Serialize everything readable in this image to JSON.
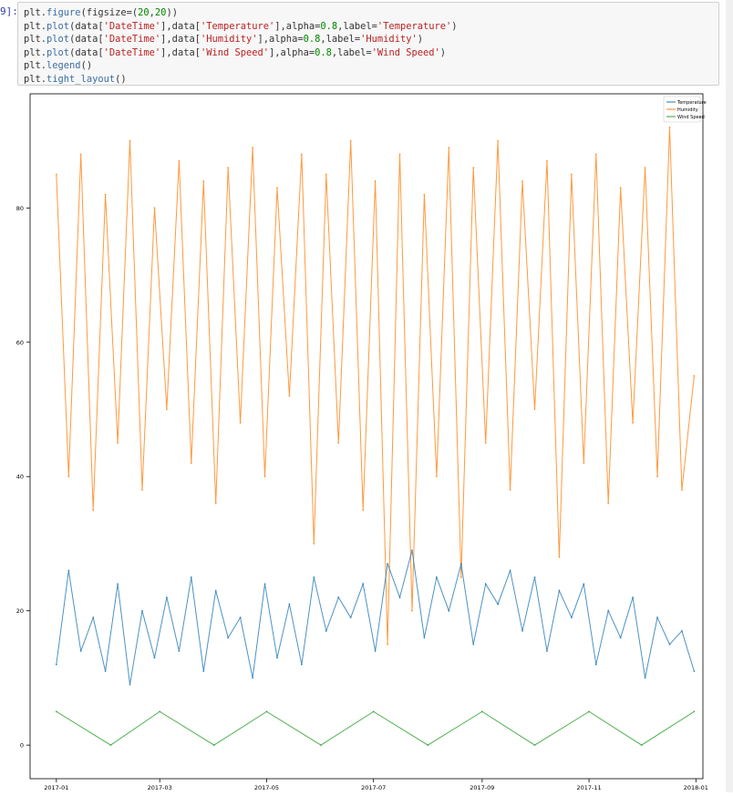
{
  "cell": {
    "prompt": "9]:",
    "lines": [
      [
        {
          "t": "plt.",
          "c": "plt"
        },
        {
          "t": "figure",
          "c": "kw"
        },
        {
          "t": "(figsize=(",
          "c": "plt"
        },
        {
          "t": "20",
          "c": "num"
        },
        {
          "t": ",",
          "c": "plt"
        },
        {
          "t": "20",
          "c": "num"
        },
        {
          "t": "))",
          "c": "plt"
        }
      ],
      [
        {
          "t": "plt.",
          "c": "plt"
        },
        {
          "t": "plot",
          "c": "kw"
        },
        {
          "t": "(data[",
          "c": "plt"
        },
        {
          "t": "'DateTime'",
          "c": "str"
        },
        {
          "t": "],data[",
          "c": "plt"
        },
        {
          "t": "'Temperature'",
          "c": "str"
        },
        {
          "t": "],alpha=",
          "c": "plt"
        },
        {
          "t": "0.8",
          "c": "num"
        },
        {
          "t": ",label=",
          "c": "plt"
        },
        {
          "t": "'Temperature'",
          "c": "str"
        },
        {
          "t": ")",
          "c": "plt"
        }
      ],
      [
        {
          "t": "plt.",
          "c": "plt"
        },
        {
          "t": "plot",
          "c": "kw"
        },
        {
          "t": "(data[",
          "c": "plt"
        },
        {
          "t": "'DateTime'",
          "c": "str"
        },
        {
          "t": "],data[",
          "c": "plt"
        },
        {
          "t": "'Humidity'",
          "c": "str"
        },
        {
          "t": "],alpha=",
          "c": "plt"
        },
        {
          "t": "0.8",
          "c": "num"
        },
        {
          "t": ",label=",
          "c": "plt"
        },
        {
          "t": "'Humidity'",
          "c": "str"
        },
        {
          "t": ")",
          "c": "plt"
        }
      ],
      [
        {
          "t": "plt.",
          "c": "plt"
        },
        {
          "t": "plot",
          "c": "kw"
        },
        {
          "t": "(data[",
          "c": "plt"
        },
        {
          "t": "'DateTime'",
          "c": "str"
        },
        {
          "t": "],data[",
          "c": "plt"
        },
        {
          "t": "'Wind Speed'",
          "c": "str"
        },
        {
          "t": "],alpha=",
          "c": "plt"
        },
        {
          "t": "0.8",
          "c": "num"
        },
        {
          "t": ",label=",
          "c": "plt"
        },
        {
          "t": "'Wind Speed'",
          "c": "str"
        },
        {
          "t": ")",
          "c": "plt"
        }
      ],
      [
        {
          "t": "plt.",
          "c": "plt"
        },
        {
          "t": "legend",
          "c": "kw"
        },
        {
          "t": "()",
          "c": "plt"
        }
      ],
      [
        {
          "t": "plt.",
          "c": "plt"
        },
        {
          "t": "tight_layout",
          "c": "kw"
        },
        {
          "t": "()",
          "c": "plt"
        }
      ]
    ]
  },
  "colors": {
    "temperature": "#1f77b4",
    "humidity": "#ff7f0e",
    "wind": "#2ca02c",
    "axis": "#000000"
  },
  "chart_data": {
    "type": "line",
    "title": "",
    "xlabel": "",
    "ylabel": "",
    "xlim": [
      "2016-12-17",
      "2018-01-05"
    ],
    "ylim": [
      -5,
      97
    ],
    "x_ticks": [
      "2017-01",
      "2017-03",
      "2017-05",
      "2017-07",
      "2017-09",
      "2017-11",
      "2018-01"
    ],
    "y_ticks": [
      0,
      20,
      40,
      60,
      80
    ],
    "legend": {
      "placement": "top-right",
      "entries": [
        "Temperature",
        "Humidity",
        "Wind Speed"
      ]
    },
    "series": [
      {
        "name": "Temperature",
        "x": [
          "2017-01-01",
          "2017-01-08",
          "2017-01-15",
          "2017-01-22",
          "2017-01-29",
          "2017-02-05",
          "2017-02-12",
          "2017-02-19",
          "2017-02-26",
          "2017-03-05",
          "2017-03-12",
          "2017-03-19",
          "2017-03-26",
          "2017-04-02",
          "2017-04-09",
          "2017-04-16",
          "2017-04-23",
          "2017-04-30",
          "2017-05-07",
          "2017-05-14",
          "2017-05-21",
          "2017-05-28",
          "2017-06-04",
          "2017-06-11",
          "2017-06-18",
          "2017-06-25",
          "2017-07-02",
          "2017-07-09",
          "2017-07-16",
          "2017-07-23",
          "2017-07-30",
          "2017-08-06",
          "2017-08-13",
          "2017-08-20",
          "2017-08-27",
          "2017-09-03",
          "2017-09-10",
          "2017-09-17",
          "2017-09-24",
          "2017-10-01",
          "2017-10-08",
          "2017-10-15",
          "2017-10-22",
          "2017-10-29",
          "2017-11-05",
          "2017-11-12",
          "2017-11-19",
          "2017-11-26",
          "2017-12-03",
          "2017-12-10",
          "2017-12-17",
          "2017-12-24",
          "2017-12-31"
        ],
        "values": [
          12,
          26,
          14,
          19,
          11,
          24,
          9,
          20,
          13,
          22,
          14,
          25,
          11,
          23,
          16,
          19,
          10,
          24,
          13,
          21,
          12,
          25,
          17,
          22,
          19,
          24,
          14,
          27,
          22,
          29,
          16,
          25,
          20,
          27,
          15,
          24,
          21,
          26,
          17,
          25,
          14,
          23,
          19,
          24,
          12,
          20,
          16,
          22,
          10,
          19,
          15,
          17,
          11
        ]
      },
      {
        "name": "Humidity",
        "x": [
          "2017-01-01",
          "2017-01-08",
          "2017-01-15",
          "2017-01-22",
          "2017-01-29",
          "2017-02-05",
          "2017-02-12",
          "2017-02-19",
          "2017-02-26",
          "2017-03-05",
          "2017-03-12",
          "2017-03-19",
          "2017-03-26",
          "2017-04-02",
          "2017-04-09",
          "2017-04-16",
          "2017-04-23",
          "2017-04-30",
          "2017-05-07",
          "2017-05-14",
          "2017-05-21",
          "2017-05-28",
          "2017-06-04",
          "2017-06-11",
          "2017-06-18",
          "2017-06-25",
          "2017-07-02",
          "2017-07-09",
          "2017-07-16",
          "2017-07-23",
          "2017-07-30",
          "2017-08-06",
          "2017-08-13",
          "2017-08-20",
          "2017-08-27",
          "2017-09-03",
          "2017-09-10",
          "2017-09-17",
          "2017-09-24",
          "2017-10-01",
          "2017-10-08",
          "2017-10-15",
          "2017-10-22",
          "2017-10-29",
          "2017-11-05",
          "2017-11-12",
          "2017-11-19",
          "2017-11-26",
          "2017-12-03",
          "2017-12-10",
          "2017-12-17",
          "2017-12-24",
          "2017-12-31"
        ],
        "values": [
          85,
          40,
          88,
          35,
          82,
          45,
          90,
          38,
          80,
          50,
          87,
          42,
          84,
          36,
          86,
          48,
          89,
          40,
          83,
          52,
          88,
          30,
          85,
          45,
          90,
          35,
          84,
          15,
          88,
          20,
          82,
          40,
          89,
          25,
          86,
          45,
          90,
          38,
          84,
          50,
          87,
          28,
          85,
          42,
          88,
          36,
          83,
          48,
          86,
          40,
          92,
          38,
          55
        ]
      },
      {
        "name": "Wind Speed",
        "x": [
          "2017-01-01",
          "2017-02-01",
          "2017-03-01",
          "2017-04-01",
          "2017-05-01",
          "2017-06-01",
          "2017-07-01",
          "2017-08-01",
          "2017-09-01",
          "2017-10-01",
          "2017-11-01",
          "2017-12-01",
          "2017-12-31"
        ],
        "values": [
          5,
          0,
          5,
          0,
          5,
          0,
          5,
          0,
          5,
          0,
          5,
          0,
          5
        ]
      }
    ]
  }
}
